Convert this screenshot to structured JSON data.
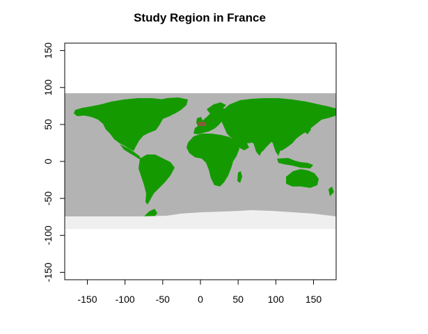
{
  "title": "Study Region in France",
  "chart_data": {
    "type": "map",
    "title": "Study Region in France",
    "xlabel": "",
    "ylabel": "",
    "xlim": [
      -180,
      180
    ],
    "ylim": [
      -160,
      160
    ],
    "x_ticks": [
      -150,
      -100,
      -50,
      0,
      50,
      100,
      150
    ],
    "y_ticks": [
      -150,
      -100,
      -50,
      0,
      50,
      100,
      150
    ],
    "raster_extent": {
      "lon": [
        -180,
        180
      ],
      "lat": [
        -90,
        90
      ]
    },
    "layers": [
      {
        "layer": "ocean",
        "color": "#b3b3b3"
      },
      {
        "layer": "land",
        "color": "#149a00"
      },
      {
        "layer": "antarctica",
        "color": "#efefef"
      },
      {
        "layer": "study-region-france",
        "color": "#8a5a3c",
        "lon_range": [
          -5,
          8
        ],
        "lat_range": [
          43,
          51
        ]
      }
    ],
    "grid": false,
    "legend": "none"
  }
}
